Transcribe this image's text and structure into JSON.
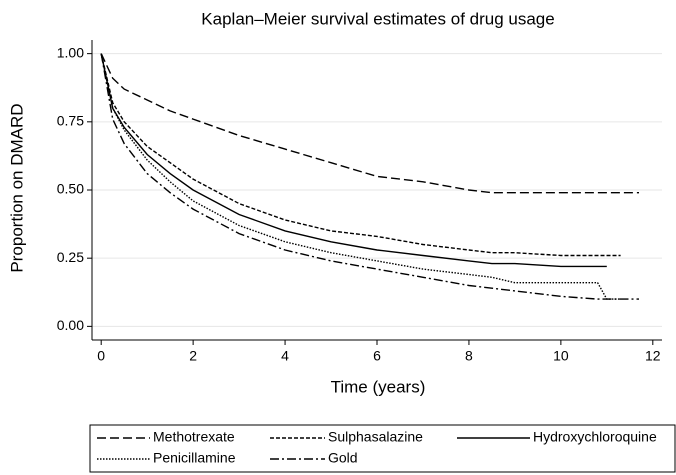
{
  "chart_data": {
    "type": "line",
    "title": "Kaplan–Meier survival estimates of drug usage",
    "x_label": "Time (years)",
    "y_label": "Proportion on DMARD",
    "x": [
      0,
      0.25,
      0.5,
      1,
      1.5,
      2,
      3,
      4,
      5,
      6,
      7,
      8,
      8.5,
      9,
      10,
      10.8,
      11,
      11.3,
      11.7
    ],
    "series": [
      {
        "name": "Methotrexate",
        "color": "#000000",
        "dash": "9,4",
        "values": [
          1,
          0.91,
          0.87,
          0.83,
          0.79,
          0.76,
          0.7,
          0.65,
          0.6,
          0.55,
          0.53,
          0.5,
          0.49,
          0.49,
          0.49,
          0.49,
          0.49,
          0.49,
          0.49
        ]
      },
      {
        "name": "Sulphasalazine",
        "color": "#000000",
        "dash": "4,2",
        "values": [
          1,
          0.82,
          0.75,
          0.66,
          0.6,
          0.54,
          0.45,
          0.39,
          0.35,
          0.33,
          0.3,
          0.28,
          0.27,
          0.27,
          0.26,
          0.26,
          0.26,
          0.26,
          null
        ]
      },
      {
        "name": "Hydroxychloroquine",
        "color": "#000000",
        "dash": "none",
        "values": [
          1,
          0.8,
          0.73,
          0.63,
          0.56,
          0.5,
          0.41,
          0.35,
          0.31,
          0.28,
          0.26,
          0.24,
          0.23,
          0.23,
          0.22,
          0.22,
          0.22,
          null,
          null
        ]
      },
      {
        "name": "Penicillamine",
        "color": "#000000",
        "dash": "1.5,1.5",
        "values": [
          1,
          0.8,
          0.72,
          0.61,
          0.53,
          0.46,
          0.37,
          0.31,
          0.27,
          0.24,
          0.21,
          0.19,
          0.18,
          0.16,
          0.16,
          0.16,
          0.1,
          0.1,
          null
        ]
      },
      {
        "name": "Gold",
        "color": "#000000",
        "dash": "9,3,2,3",
        "values": [
          1,
          0.76,
          0.67,
          0.56,
          0.49,
          0.43,
          0.34,
          0.28,
          0.24,
          0.21,
          0.18,
          0.15,
          0.14,
          0.13,
          0.11,
          0.1,
          0.1,
          0.1,
          0.1
        ]
      }
    ],
    "xlim": [
      -0.2,
      12.2
    ],
    "xticks": [
      0,
      2,
      4,
      6,
      8,
      10,
      12
    ],
    "ylim": [
      -0.05,
      1.05
    ],
    "yticks": [
      {
        "value": 0,
        "label": "0.00"
      },
      0.25,
      {
        "value": 0.5,
        "label": "0.50"
      },
      0.75,
      {
        "value": 1,
        "label": "1.00"
      }
    ],
    "grid": true,
    "legend": "bottom"
  }
}
